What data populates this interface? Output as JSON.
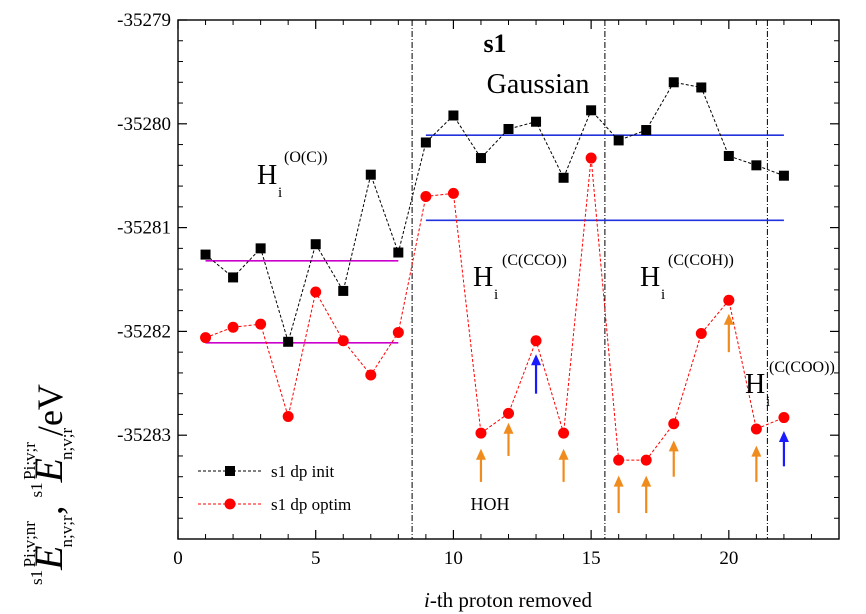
{
  "chart_data": {
    "type": "line",
    "title": "s1",
    "subtitle": "Gaussian",
    "xlabel_italic": "i",
    "xlabel_rest": "-th proton removed",
    "xlim": [
      0,
      24
    ],
    "ylim": [
      -35284,
      -35279
    ],
    "x_ticks": [
      0,
      5,
      10,
      15,
      20
    ],
    "y_ticks": [
      -35279,
      -35280,
      -35281,
      -35282,
      -35283
    ],
    "x_tick_labels": [
      "0",
      "5",
      "10",
      "15",
      "20"
    ],
    "y_tick_labels": [
      "-35279",
      "-35280",
      "-35281",
      "-35282",
      "-35283"
    ],
    "series": [
      {
        "name": "s1 dp init",
        "color": "#000000",
        "marker": "square",
        "x": [
          1,
          2,
          3,
          4,
          5,
          6,
          7,
          8,
          9,
          10,
          11,
          12,
          13,
          14,
          15,
          16,
          17,
          18,
          19,
          20,
          21,
          22
        ],
        "y": [
          -35281.26,
          -35281.48,
          -35281.2,
          -35282.1,
          -35281.16,
          -35281.61,
          -35280.49,
          -35281.24,
          -35280.18,
          -35279.92,
          -35280.33,
          -35280.05,
          -35279.98,
          -35280.52,
          -35279.87,
          -35280.16,
          -35280.06,
          -35279.6,
          -35279.65,
          -35280.31,
          -35280.4,
          -35280.5
        ]
      },
      {
        "name": "s1 dp optim",
        "color": "#ff0000",
        "marker": "circle",
        "x": [
          1,
          2,
          3,
          4,
          5,
          6,
          7,
          8,
          9,
          10,
          11,
          12,
          13,
          14,
          15,
          16,
          17,
          18,
          19,
          20,
          21,
          22
        ],
        "y": [
          -35282.06,
          -35281.96,
          -35281.93,
          -35282.82,
          -35281.62,
          -35282.09,
          -35282.42,
          -35282.01,
          -35280.7,
          -35280.67,
          -35282.98,
          -35282.79,
          -35282.09,
          -35282.98,
          -35280.33,
          -35283.24,
          -35283.24,
          -35282.89,
          -35282.02,
          -35281.7,
          -35282.94,
          -35282.83
        ]
      }
    ],
    "hlines": [
      {
        "color": "#cc00cc",
        "x": [
          1,
          8
        ],
        "y": -35281.32
      },
      {
        "color": "#cc00cc",
        "x": [
          1,
          8
        ],
        "y": -35282.11
      },
      {
        "color": "#2233dd",
        "x": [
          9,
          22
        ],
        "y": -35280.11
      },
      {
        "color": "#2233dd",
        "x": [
          9,
          22
        ],
        "y": -35280.93
      }
    ],
    "vlines": [
      8.5,
      15.5,
      21.4
    ],
    "arrows": [
      {
        "x": 11,
        "color": "#f08c1e",
        "y_from": -35283.45,
        "y_to": -35283.13
      },
      {
        "x": 12,
        "color": "#f08c1e",
        "y_from": -35283.2,
        "y_to": -35282.88
      },
      {
        "x": 13,
        "color": "#1a1aff",
        "y_from": -35282.6,
        "y_to": -35282.22
      },
      {
        "x": 14,
        "color": "#f08c1e",
        "y_from": -35283.45,
        "y_to": -35283.13
      },
      {
        "x": 16,
        "color": "#f08c1e",
        "y_from": -35283.75,
        "y_to": -35283.39
      },
      {
        "x": 17,
        "color": "#f08c1e",
        "y_from": -35283.75,
        "y_to": -35283.39
      },
      {
        "x": 18,
        "color": "#f08c1e",
        "y_from": -35283.4,
        "y_to": -35283.05
      },
      {
        "x": 20,
        "color": "#f08c1e",
        "y_from": -35282.2,
        "y_to": -35281.83
      },
      {
        "x": 21,
        "color": "#f08c1e",
        "y_from": -35283.45,
        "y_to": -35283.1
      },
      {
        "x": 22,
        "color": "#1a1aff",
        "y_from": -35283.3,
        "y_to": -35282.96
      }
    ],
    "annotations": {
      "h_oc_main": "H",
      "h_oc_sub": "i",
      "h_oc_sup": "(O(C))",
      "h_ccco_main": "H",
      "h_ccco_sub": "i",
      "h_ccco_sup": "(C(CCO))",
      "h_ccoh_main": "H",
      "h_ccoh_sub": "i",
      "h_ccoh_sup": "(C(COH))",
      "h_ccoo_main": "H",
      "h_ccoo_sub": "i",
      "h_ccoo_sup": "(C(COO))",
      "hoh": "HOH"
    },
    "ylabel_parts": {
      "sup_left": "s1",
      "E": "E",
      "sub_r": "n;v;r",
      "sup_r": "Pi;v;r",
      "comma": ",",
      "sub_nr": "n;v;r",
      "sup_nr": "Pi;v;nr",
      "unit": "/eV"
    },
    "legend_placement": "bottom-left",
    "grid": false
  }
}
